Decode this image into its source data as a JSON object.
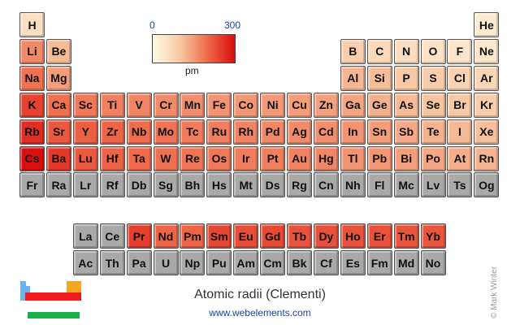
{
  "chart_data": {
    "type": "heatmap",
    "title": "Atomic radii (Clementi)",
    "source": "www.webelements.com",
    "credit": "© Mark Winter",
    "color_scale": {
      "min": 0,
      "max": 300,
      "unit": "pm",
      "colors": [
        "#fffbe6",
        "#f7c7a3",
        "#ee6a4a",
        "#d90d0d"
      ]
    },
    "no_data_color": "#a9a9a9",
    "elements": [
      {
        "symbol": "H",
        "row": 1,
        "col": 1,
        "value": 53
      },
      {
        "symbol": "He",
        "row": 1,
        "col": 18,
        "value": 31
      },
      {
        "symbol": "Li",
        "row": 2,
        "col": 1,
        "value": 167
      },
      {
        "symbol": "Be",
        "row": 2,
        "col": 2,
        "value": 112
      },
      {
        "symbol": "B",
        "row": 2,
        "col": 13,
        "value": 87
      },
      {
        "symbol": "C",
        "row": 2,
        "col": 14,
        "value": 67
      },
      {
        "symbol": "N",
        "row": 2,
        "col": 15,
        "value": 56
      },
      {
        "symbol": "O",
        "row": 2,
        "col": 16,
        "value": 48
      },
      {
        "symbol": "F",
        "row": 2,
        "col": 17,
        "value": 42
      },
      {
        "symbol": "Ne",
        "row": 2,
        "col": 18,
        "value": 38
      },
      {
        "symbol": "Na",
        "row": 3,
        "col": 1,
        "value": 190
      },
      {
        "symbol": "Mg",
        "row": 3,
        "col": 2,
        "value": 145
      },
      {
        "symbol": "Al",
        "row": 3,
        "col": 13,
        "value": 118
      },
      {
        "symbol": "Si",
        "row": 3,
        "col": 14,
        "value": 111
      },
      {
        "symbol": "P",
        "row": 3,
        "col": 15,
        "value": 98
      },
      {
        "symbol": "S",
        "row": 3,
        "col": 16,
        "value": 88
      },
      {
        "symbol": "Cl",
        "row": 3,
        "col": 17,
        "value": 79
      },
      {
        "symbol": "Ar",
        "row": 3,
        "col": 18,
        "value": 71
      },
      {
        "symbol": "K",
        "row": 4,
        "col": 1,
        "value": 243
      },
      {
        "symbol": "Ca",
        "row": 4,
        "col": 2,
        "value": 194
      },
      {
        "symbol": "Sc",
        "row": 4,
        "col": 3,
        "value": 184
      },
      {
        "symbol": "Ti",
        "row": 4,
        "col": 4,
        "value": 176
      },
      {
        "symbol": "V",
        "row": 4,
        "col": 5,
        "value": 171
      },
      {
        "symbol": "Cr",
        "row": 4,
        "col": 6,
        "value": 166
      },
      {
        "symbol": "Mn",
        "row": 4,
        "col": 7,
        "value": 161
      },
      {
        "symbol": "Fe",
        "row": 4,
        "col": 8,
        "value": 156
      },
      {
        "symbol": "Co",
        "row": 4,
        "col": 9,
        "value": 152
      },
      {
        "symbol": "Ni",
        "row": 4,
        "col": 10,
        "value": 149
      },
      {
        "symbol": "Cu",
        "row": 4,
        "col": 11,
        "value": 145
      },
      {
        "symbol": "Zn",
        "row": 4,
        "col": 12,
        "value": 142
      },
      {
        "symbol": "Ga",
        "row": 4,
        "col": 13,
        "value": 136
      },
      {
        "symbol": "Ge",
        "row": 4,
        "col": 14,
        "value": 125
      },
      {
        "symbol": "As",
        "row": 4,
        "col": 15,
        "value": 114
      },
      {
        "symbol": "Se",
        "row": 4,
        "col": 16,
        "value": 103
      },
      {
        "symbol": "Br",
        "row": 4,
        "col": 17,
        "value": 94
      },
      {
        "symbol": "Kr",
        "row": 4,
        "col": 18,
        "value": 88
      },
      {
        "symbol": "Rb",
        "row": 5,
        "col": 1,
        "value": 265
      },
      {
        "symbol": "Sr",
        "row": 5,
        "col": 2,
        "value": 219
      },
      {
        "symbol": "Y",
        "row": 5,
        "col": 3,
        "value": 212
      },
      {
        "symbol": "Zr",
        "row": 5,
        "col": 4,
        "value": 206
      },
      {
        "symbol": "Nb",
        "row": 5,
        "col": 5,
        "value": 198
      },
      {
        "symbol": "Mo",
        "row": 5,
        "col": 6,
        "value": 190
      },
      {
        "symbol": "Tc",
        "row": 5,
        "col": 7,
        "value": 183
      },
      {
        "symbol": "Ru",
        "row": 5,
        "col": 8,
        "value": 178
      },
      {
        "symbol": "Rh",
        "row": 5,
        "col": 9,
        "value": 173
      },
      {
        "symbol": "Pd",
        "row": 5,
        "col": 10,
        "value": 169
      },
      {
        "symbol": "Ag",
        "row": 5,
        "col": 11,
        "value": 165
      },
      {
        "symbol": "Cd",
        "row": 5,
        "col": 12,
        "value": 161
      },
      {
        "symbol": "In",
        "row": 5,
        "col": 13,
        "value": 156
      },
      {
        "symbol": "Sn",
        "row": 5,
        "col": 14,
        "value": 145
      },
      {
        "symbol": "Sb",
        "row": 5,
        "col": 15,
        "value": 133
      },
      {
        "symbol": "Te",
        "row": 5,
        "col": 16,
        "value": 123
      },
      {
        "symbol": "I",
        "row": 5,
        "col": 17,
        "value": 115
      },
      {
        "symbol": "Xe",
        "row": 5,
        "col": 18,
        "value": 108
      },
      {
        "symbol": "Cs",
        "row": 6,
        "col": 1,
        "value": 298
      },
      {
        "symbol": "Ba",
        "row": 6,
        "col": 2,
        "value": 253
      },
      {
        "symbol": "Lu",
        "row": 6,
        "col": 3,
        "value": 217
      },
      {
        "symbol": "Hf",
        "row": 6,
        "col": 4,
        "value": 208
      },
      {
        "symbol": "Ta",
        "row": 6,
        "col": 5,
        "value": 200
      },
      {
        "symbol": "W",
        "row": 6,
        "col": 6,
        "value": 193
      },
      {
        "symbol": "Re",
        "row": 6,
        "col": 7,
        "value": 188
      },
      {
        "symbol": "Os",
        "row": 6,
        "col": 8,
        "value": 185
      },
      {
        "symbol": "Ir",
        "row": 6,
        "col": 9,
        "value": 180
      },
      {
        "symbol": "Pt",
        "row": 6,
        "col": 10,
        "value": 177
      },
      {
        "symbol": "Au",
        "row": 6,
        "col": 11,
        "value": 174
      },
      {
        "symbol": "Hg",
        "row": 6,
        "col": 12,
        "value": 171
      },
      {
        "symbol": "Tl",
        "row": 6,
        "col": 13,
        "value": 156
      },
      {
        "symbol": "Pb",
        "row": 6,
        "col": 14,
        "value": 154
      },
      {
        "symbol": "Bi",
        "row": 6,
        "col": 15,
        "value": 143
      },
      {
        "symbol": "Po",
        "row": 6,
        "col": 16,
        "value": 135
      },
      {
        "symbol": "At",
        "row": 6,
        "col": 17,
        "value": 127
      },
      {
        "symbol": "Rn",
        "row": 6,
        "col": 18,
        "value": 120
      },
      {
        "symbol": "Fr",
        "row": 7,
        "col": 1,
        "value": null
      },
      {
        "symbol": "Ra",
        "row": 7,
        "col": 2,
        "value": null
      },
      {
        "symbol": "Lr",
        "row": 7,
        "col": 3,
        "value": null
      },
      {
        "symbol": "Rf",
        "row": 7,
        "col": 4,
        "value": null
      },
      {
        "symbol": "Db",
        "row": 7,
        "col": 5,
        "value": null
      },
      {
        "symbol": "Sg",
        "row": 7,
        "col": 6,
        "value": null
      },
      {
        "symbol": "Bh",
        "row": 7,
        "col": 7,
        "value": null
      },
      {
        "symbol": "Hs",
        "row": 7,
        "col": 8,
        "value": null
      },
      {
        "symbol": "Mt",
        "row": 7,
        "col": 9,
        "value": null
      },
      {
        "symbol": "Ds",
        "row": 7,
        "col": 10,
        "value": null
      },
      {
        "symbol": "Rg",
        "row": 7,
        "col": 11,
        "value": null
      },
      {
        "symbol": "Cn",
        "row": 7,
        "col": 12,
        "value": null
      },
      {
        "symbol": "Nh",
        "row": 7,
        "col": 13,
        "value": null
      },
      {
        "symbol": "Fl",
        "row": 7,
        "col": 14,
        "value": null
      },
      {
        "symbol": "Mc",
        "row": 7,
        "col": 15,
        "value": null
      },
      {
        "symbol": "Lv",
        "row": 7,
        "col": 16,
        "value": null
      },
      {
        "symbol": "Ts",
        "row": 7,
        "col": 17,
        "value": null
      },
      {
        "symbol": "Og",
        "row": 7,
        "col": 18,
        "value": null
      },
      {
        "symbol": "La",
        "row": 9,
        "col": 3,
        "value": null
      },
      {
        "symbol": "Ce",
        "row": 9,
        "col": 4,
        "value": null
      },
      {
        "symbol": "Pr",
        "row": 9,
        "col": 5,
        "value": 247
      },
      {
        "symbol": "Nd",
        "row": 9,
        "col": 6,
        "value": 206
      },
      {
        "symbol": "Pm",
        "row": 9,
        "col": 7,
        "value": 205
      },
      {
        "symbol": "Sm",
        "row": 9,
        "col": 8,
        "value": 238
      },
      {
        "symbol": "Eu",
        "row": 9,
        "col": 9,
        "value": 231
      },
      {
        "symbol": "Gd",
        "row": 9,
        "col": 10,
        "value": 233
      },
      {
        "symbol": "Tb",
        "row": 9,
        "col": 11,
        "value": 225
      },
      {
        "symbol": "Dy",
        "row": 9,
        "col": 12,
        "value": 228
      },
      {
        "symbol": "Ho",
        "row": 9,
        "col": 13,
        "value": 226
      },
      {
        "symbol": "Er",
        "row": 9,
        "col": 14,
        "value": 226
      },
      {
        "symbol": "Tm",
        "row": 9,
        "col": 15,
        "value": 222
      },
      {
        "symbol": "Yb",
        "row": 9,
        "col": 16,
        "value": 222
      },
      {
        "symbol": "Ac",
        "row": 10,
        "col": 3,
        "value": null
      },
      {
        "symbol": "Th",
        "row": 10,
        "col": 4,
        "value": null
      },
      {
        "symbol": "Pa",
        "row": 10,
        "col": 5,
        "value": null
      },
      {
        "symbol": "U",
        "row": 10,
        "col": 6,
        "value": null
      },
      {
        "symbol": "Np",
        "row": 10,
        "col": 7,
        "value": null
      },
      {
        "symbol": "Pu",
        "row": 10,
        "col": 8,
        "value": null
      },
      {
        "symbol": "Am",
        "row": 10,
        "col": 9,
        "value": null
      },
      {
        "symbol": "Cm",
        "row": 10,
        "col": 10,
        "value": null
      },
      {
        "symbol": "Bk",
        "row": 10,
        "col": 11,
        "value": null
      },
      {
        "symbol": "Cf",
        "row": 10,
        "col": 12,
        "value": null
      },
      {
        "symbol": "Es",
        "row": 10,
        "col": 13,
        "value": null
      },
      {
        "symbol": "Fm",
        "row": 10,
        "col": 14,
        "value": null
      },
      {
        "symbol": "Md",
        "row": 10,
        "col": 15,
        "value": null
      },
      {
        "symbol": "No",
        "row": 10,
        "col": 16,
        "value": null
      }
    ]
  }
}
